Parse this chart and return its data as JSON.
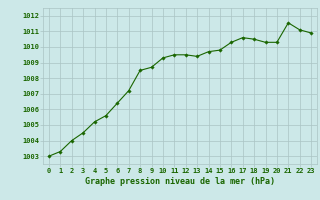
{
  "x": [
    0,
    1,
    2,
    3,
    4,
    5,
    6,
    7,
    8,
    9,
    10,
    11,
    12,
    13,
    14,
    15,
    16,
    17,
    18,
    19,
    20,
    21,
    22,
    23
  ],
  "y": [
    1003.0,
    1003.3,
    1004.0,
    1004.5,
    1005.2,
    1005.6,
    1006.4,
    1007.2,
    1008.5,
    1008.7,
    1009.3,
    1009.5,
    1009.5,
    1009.4,
    1009.7,
    1009.8,
    1010.3,
    1010.6,
    1010.5,
    1010.3,
    1010.3,
    1011.55,
    1011.1,
    1010.9
  ],
  "ylim": [
    1002.5,
    1012.5
  ],
  "yticks": [
    1003,
    1004,
    1005,
    1006,
    1007,
    1008,
    1009,
    1010,
    1011,
    1012
  ],
  "xticks": [
    0,
    1,
    2,
    3,
    4,
    5,
    6,
    7,
    8,
    9,
    10,
    11,
    12,
    13,
    14,
    15,
    16,
    17,
    18,
    19,
    20,
    21,
    22,
    23
  ],
  "line_color": "#1a6600",
  "marker": "D",
  "marker_size": 1.8,
  "background_color": "#cce8e8",
  "grid_color": "#aac4c4",
  "xlabel": "Graphe pression niveau de la mer (hPa)",
  "xlabel_color": "#1a6600",
  "xlabel_fontsize": 6.0,
  "tick_color": "#1a6600",
  "tick_fontsize": 5.0,
  "linewidth": 0.8
}
